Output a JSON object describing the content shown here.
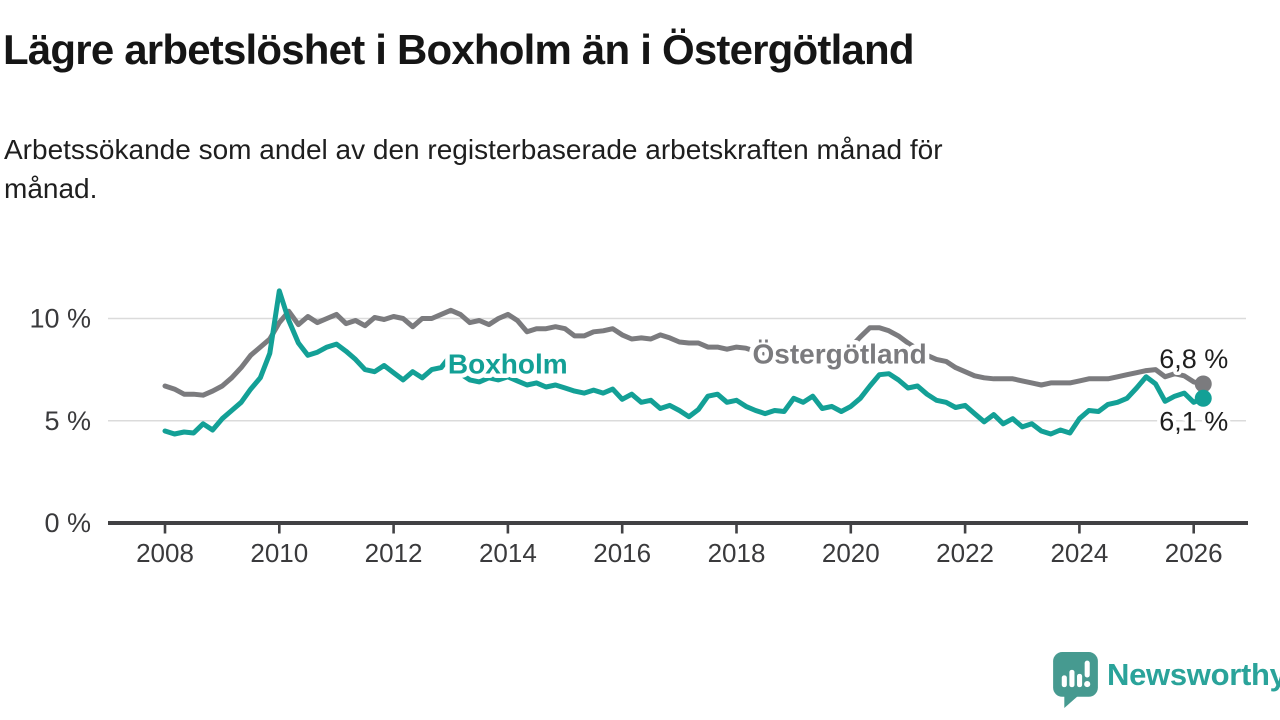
{
  "header": {
    "title": "Lägre arbetslöshet i Boxholm än i Östergötland",
    "subtitle_line1": "Arbetssökande som andel av den registerbaserade arbetskraften månad för",
    "subtitle_line2": "månad."
  },
  "footer": {
    "brand": "Newsworthy",
    "logo_icon": "speech-bubble-with-bar-chart-and-exclamation"
  },
  "colors": {
    "boxholm": "#13a096",
    "ostergotland": "#7b7b7e",
    "grid": "#dbdbdb",
    "axis": "#414144",
    "axis_text": "#3a3a3c",
    "end_label_text": "#1f1f1f",
    "logo_icon": "#469a90",
    "logo_text": "#2aa39a",
    "background": "#ffffff"
  },
  "chart_data": {
    "type": "line",
    "title": "Lägre arbetslöshet i Boxholm än i Östergötland",
    "subtitle": "Arbetssökande som andel av den registerbaserade arbetskraften månad för månad.",
    "unit": "%",
    "grid": "horizontal",
    "legend": "inline-labels",
    "ylim": [
      0,
      11.8
    ],
    "y_ticks": [
      {
        "v": 0,
        "label": "0 %"
      },
      {
        "v": 5,
        "label": "5 %"
      },
      {
        "v": 10,
        "label": "10 %"
      }
    ],
    "x": {
      "start": 2008.0,
      "step": 0.16667,
      "tick_years": [
        2008,
        2010,
        2012,
        2014,
        2016,
        2018,
        2020,
        2022,
        2024,
        2026
      ],
      "tick_labels": [
        "2008",
        "2010",
        "2012",
        "2014",
        "2016",
        "2018",
        "2020",
        "2022",
        "2024",
        "2026"
      ]
    },
    "series": [
      {
        "name": "Östergötland",
        "color_key": "ostergotland",
        "end_label": "6,8 %",
        "end_value": 6.8,
        "label_pos": {
          "year": 2018.28,
          "value": 7.8
        },
        "end_label_offset": {
          "dx": 25,
          "dy": -16
        },
        "values": [
          6.7,
          6.55,
          6.3,
          6.3,
          6.25,
          6.45,
          6.7,
          7.1,
          7.6,
          8.2,
          8.6,
          9.0,
          9.8,
          10.35,
          9.7,
          10.1,
          9.8,
          10.0,
          10.2,
          9.75,
          9.9,
          9.65,
          10.05,
          9.95,
          10.1,
          10.0,
          9.6,
          10.0,
          10.0,
          10.2,
          10.4,
          10.2,
          9.8,
          9.9,
          9.7,
          10.0,
          10.2,
          9.9,
          9.35,
          9.5,
          9.5,
          9.6,
          9.5,
          9.15,
          9.15,
          9.35,
          9.4,
          9.5,
          9.2,
          9.0,
          9.05,
          9.0,
          9.2,
          9.05,
          8.85,
          8.8,
          8.8,
          8.6,
          8.6,
          8.5,
          8.6,
          8.55,
          8.4,
          8.3,
          8.4,
          8.3,
          8.3,
          8.2,
          8.2,
          8.3,
          8.35,
          8.45,
          8.6,
          9.1,
          9.55,
          9.55,
          9.4,
          9.15,
          8.8,
          8.5,
          8.2,
          8.0,
          7.9,
          7.6,
          7.4,
          7.2,
          7.1,
          7.05,
          7.05,
          7.05,
          6.95,
          6.85,
          6.75,
          6.85,
          6.85,
          6.85,
          6.95,
          7.05,
          7.05,
          7.05,
          7.15,
          7.25,
          7.35,
          7.45,
          7.5,
          7.15,
          7.3,
          7.2,
          6.9,
          6.8
        ]
      },
      {
        "name": "Boxholm",
        "color_key": "boxholm",
        "end_label": "6,1 %",
        "end_value": 6.1,
        "label_pos": {
          "year": 2012.95,
          "value": 7.3
        },
        "end_label_offset": {
          "dx": 25,
          "dy": 32
        },
        "values": [
          4.5,
          4.35,
          4.45,
          4.4,
          4.85,
          4.55,
          5.1,
          5.5,
          5.9,
          6.55,
          7.1,
          8.3,
          11.35,
          9.9,
          8.8,
          8.2,
          8.35,
          8.6,
          8.75,
          8.4,
          8.0,
          7.5,
          7.4,
          7.7,
          7.35,
          7.0,
          7.4,
          7.1,
          7.5,
          7.6,
          8.2,
          7.3,
          7.0,
          6.9,
          7.1,
          7.0,
          7.15,
          6.95,
          6.75,
          6.85,
          6.65,
          6.75,
          6.6,
          6.45,
          6.35,
          6.5,
          6.35,
          6.55,
          6.05,
          6.3,
          5.9,
          6.0,
          5.6,
          5.75,
          5.5,
          5.2,
          5.55,
          6.2,
          6.3,
          5.9,
          6.0,
          5.7,
          5.5,
          5.35,
          5.5,
          5.45,
          6.1,
          5.9,
          6.2,
          5.6,
          5.7,
          5.45,
          5.7,
          6.1,
          6.7,
          7.25,
          7.3,
          7.0,
          6.6,
          6.7,
          6.3,
          6.0,
          5.9,
          5.65,
          5.75,
          5.35,
          4.95,
          5.3,
          4.85,
          5.1,
          4.7,
          4.85,
          4.5,
          4.35,
          4.55,
          4.4,
          5.1,
          5.5,
          5.45,
          5.8,
          5.9,
          6.1,
          6.6,
          7.15,
          6.8,
          5.95,
          6.2,
          6.35,
          5.9,
          6.1
        ]
      }
    ]
  }
}
